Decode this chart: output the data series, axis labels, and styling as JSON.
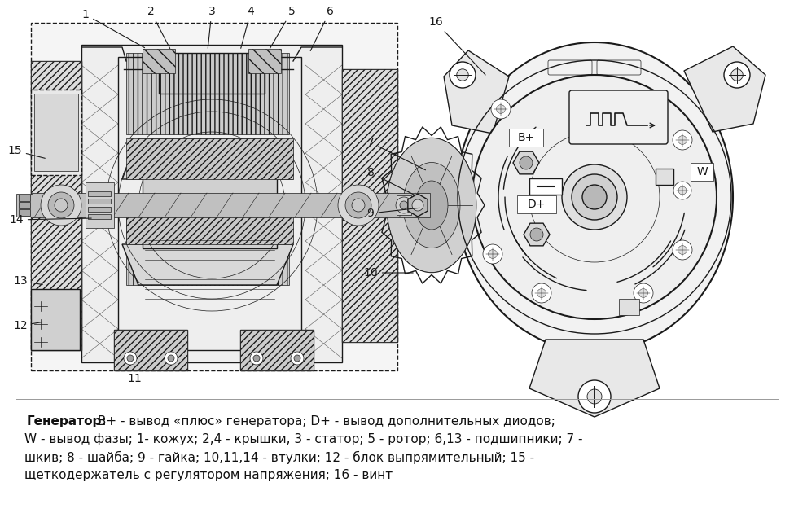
{
  "bg_color": "#ffffff",
  "fig_width": 9.75,
  "fig_height": 6.46,
  "dpi": 100,
  "caption_bold": "Генератор:",
  "caption_line1_rest": " B+ - вывод «плюс» генератора; D+ - вывод дополнительных диодов;",
  "caption_line2": "W - вывод фазы; 1- кожух; 2,4 - крышки, 3 - статор; 5 - ротор; 6,13 - подшипники; 7 -",
  "caption_line3": "шкив; 8 - шайба; 9 - гайка; 10,11,14 - втулки; 12 - блок выпрямительный; 15 -",
  "caption_line4": "щеткодержатель с регулятором напряжения; 16 - винт",
  "caption_fontsize": 11,
  "lc": "#1a1a1a",
  "lw_thin": 0.5,
  "lw_med": 1.0,
  "lw_thick": 1.5,
  "label_fontsize": 10
}
